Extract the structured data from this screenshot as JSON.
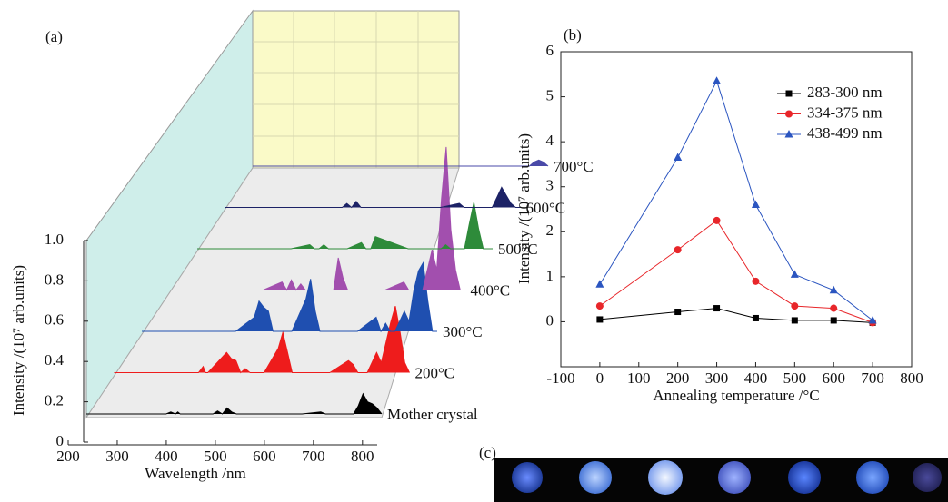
{
  "chart_data": [
    {
      "type": "waterfall",
      "panel_label": "(a)",
      "x_label": "Wavelength /nm",
      "y_label": "Intensity /(10⁷ arb.units)",
      "xlim": [
        200,
        830
      ],
      "xticks": [
        200,
        300,
        400,
        500,
        600,
        700,
        800
      ],
      "ylim": [
        0,
        1
      ],
      "yticks": [
        0,
        0.2,
        0.4,
        0.6,
        0.8,
        {
          "value": 1,
          "label": "1.0"
        }
      ],
      "x": [
        200,
        370,
        380,
        390,
        395,
        400,
        440,
        450,
        460,
        470,
        480,
        490,
        500,
        510,
        520,
        550,
        560,
        570,
        580,
        650,
        660,
        700,
        710,
        720,
        730,
        740,
        760,
        770,
        780,
        790,
        800,
        810,
        820,
        830
      ],
      "series": [
        {
          "name": "Mother crystal",
          "color": "#000000",
          "values": [
            0,
            0,
            0.01,
            0,
            0.01,
            0,
            0,
            0,
            0,
            0,
            0.015,
            0,
            0.03,
            0.01,
            0,
            0,
            0,
            0,
            0,
            0,
            0,
            0.01,
            0,
            0,
            0,
            0,
            0,
            0,
            0.04,
            0.1,
            0.06,
            0.05,
            0.03,
            0
          ]
        },
        {
          "name": "200°C",
          "color": "#ee1c1c",
          "values": [
            0,
            0,
            0,
            0.03,
            0,
            0,
            0.1,
            0.07,
            0.06,
            0,
            0.02,
            0,
            0,
            0,
            0,
            0.12,
            0.2,
            0.1,
            0,
            0,
            0,
            0.06,
            0.04,
            0,
            0,
            0,
            0.1,
            0.05,
            0.15,
            0.25,
            0.33,
            0.2,
            0.05,
            0
          ]
        },
        {
          "name": "300°C",
          "color": "#1f4fb0",
          "values": [
            0,
            0,
            0,
            0,
            0,
            0,
            0.07,
            0.15,
            0.12,
            0.1,
            0,
            0,
            0,
            0,
            0,
            0.16,
            0.26,
            0.1,
            0,
            0,
            0,
            0.07,
            0,
            0.04,
            0,
            0,
            0.1,
            0.05,
            0.2,
            0.3,
            0.34,
            0.15,
            0,
            0
          ]
        },
        {
          "name": "400°C",
          "color": "#a24fae",
          "values": [
            0,
            0,
            0,
            0,
            0,
            0,
            0.04,
            0,
            0.05,
            0,
            0.03,
            0,
            0,
            0,
            0,
            0,
            0.16,
            0.06,
            0,
            0,
            0,
            0.04,
            0,
            0,
            0,
            0,
            0.2,
            0.1,
            0.45,
            0.71,
            0.3,
            0.1,
            0,
            0
          ]
        },
        {
          "name": "500°C",
          "color": "#2e8b3a",
          "values": [
            0,
            0,
            0,
            0,
            0,
            0,
            0.02,
            0,
            0,
            0.02,
            0,
            0,
            0,
            0,
            0,
            0.03,
            0,
            0,
            0.06,
            0,
            0,
            0,
            0,
            0,
            0.02,
            0,
            0,
            0,
            0.12,
            0.23,
            0.1,
            0,
            0,
            0
          ]
        },
        {
          "name": "600°C",
          "color": "#1c2266",
          "values": [
            0,
            0,
            0,
            0,
            0,
            0,
            0,
            0,
            0.02,
            0,
            0.03,
            0,
            0,
            0,
            0,
            0,
            0,
            0,
            0,
            0,
            0,
            0.02,
            0,
            0,
            0,
            0,
            0,
            0,
            0.05,
            0.1,
            0.06,
            0.02,
            0,
            0
          ]
        },
        {
          "name": "700°C",
          "color": "#4a4aa8",
          "values": [
            0,
            0,
            0,
            0,
            0,
            0,
            0,
            0,
            0,
            0,
            0,
            0,
            0,
            0,
            0,
            0,
            0,
            0,
            0,
            0,
            0,
            0,
            0,
            0,
            0,
            0,
            0,
            0,
            0,
            0,
            0.02,
            0.03,
            0.02,
            0
          ]
        }
      ]
    },
    {
      "type": "line",
      "panel_label": "(b)",
      "x_label": "Annealing temperature /°C",
      "y_label": "Intensity /(10⁷ arb.units)",
      "x": [
        0,
        200,
        300,
        400,
        500,
        600,
        700
      ],
      "xlim": [
        -100,
        800
      ],
      "xticks": [
        -100,
        0,
        100,
        200,
        300,
        400,
        500,
        600,
        700,
        800
      ],
      "ylim": [
        -1,
        6
      ],
      "yticks": [
        0,
        1,
        2,
        3,
        4,
        5,
        6
      ],
      "legend": "upper right",
      "series": [
        {
          "name": "283-300 nm",
          "color": "#000000",
          "marker": "square",
          "values": [
            0.05,
            0.22,
            0.3,
            0.08,
            0.03,
            0.03,
            -0.02
          ]
        },
        {
          "name": "334-375 nm",
          "color": "#e8262a",
          "marker": "circle",
          "values": [
            0.35,
            1.6,
            2.25,
            0.9,
            0.35,
            0.3,
            -0.02
          ]
        },
        {
          "name": "438-499 nm",
          "color": "#2b55c0",
          "marker": "triangle",
          "values": [
            0.83,
            3.65,
            5.35,
            2.6,
            1.05,
            0.7,
            0.03
          ]
        }
      ]
    }
  ],
  "panel_c": {
    "label": "(c)"
  }
}
